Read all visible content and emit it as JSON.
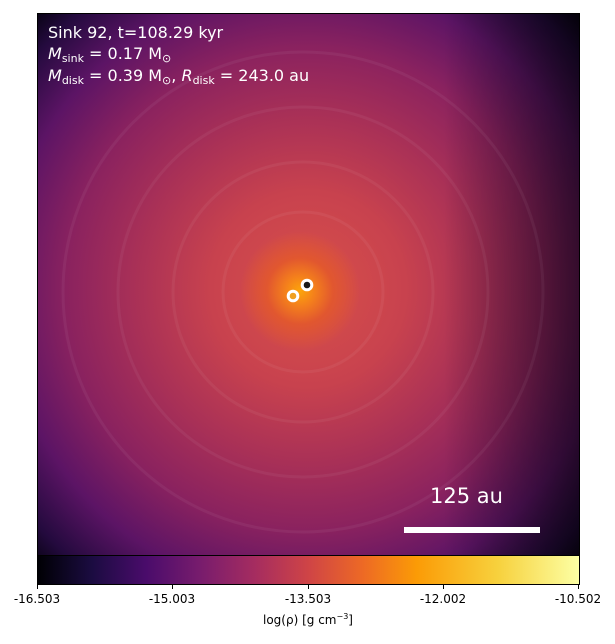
{
  "annotations": {
    "sink_line": "Sink 92, t=108.29 kyr",
    "msink_symbol": "M",
    "msink_sub": "sink",
    "msink_value": " = 0.17 M",
    "msink_sun": "⊙",
    "mdisk_symbol": "M",
    "mdisk_sub": "disk",
    "mdisk_value": " = 0.39 M",
    "mdisk_sun": "⊙",
    "mdisk_sep": ", ",
    "rdisk_symbol": "R",
    "rdisk_sub": "disk",
    "rdisk_value": " = 243.0 au"
  },
  "scale_bar": {
    "label": "125 au"
  },
  "colorbar": {
    "ticks": [
      "-16.503",
      "-15.003",
      "-13.503",
      "-12.002",
      "-10.502"
    ],
    "label_main": "log(ρ) [g cm",
    "label_exp": "−3",
    "label_close": "]",
    "colormap": "inferno"
  }
}
